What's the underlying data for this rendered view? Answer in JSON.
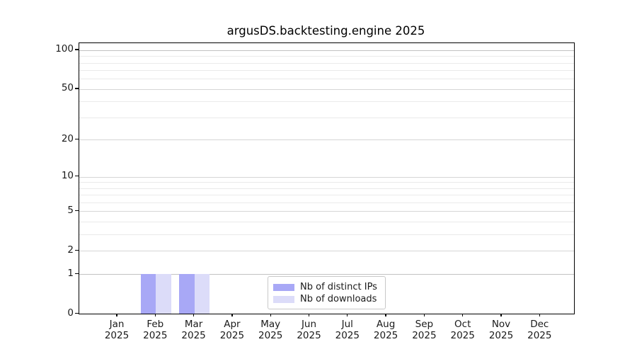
{
  "chart_data": {
    "type": "bar",
    "title": "argusDS.backtesting.engine 2025",
    "categories": [
      "Jan",
      "Feb",
      "Mar",
      "Apr",
      "May",
      "Jun",
      "Jul",
      "Aug",
      "Sep",
      "Oct",
      "Nov",
      "Dec"
    ],
    "year_label": "2025",
    "series": [
      {
        "name": "Nb of distinct IPs",
        "color": "#a8a8f6",
        "values": [
          0,
          1,
          1,
          0,
          0,
          0,
          0,
          0,
          0,
          0,
          0,
          0
        ]
      },
      {
        "name": "Nb of downloads",
        "color": "#dcdcf9",
        "values": [
          0,
          1,
          1,
          0,
          0,
          0,
          0,
          0,
          0,
          0,
          0,
          0
        ]
      }
    ],
    "y_axis": {
      "scale": "log1p",
      "ticks": [
        0,
        1,
        2,
        5,
        10,
        20,
        50,
        100
      ],
      "minor_ticks": [
        3,
        4,
        6,
        7,
        8,
        9,
        30,
        40,
        60,
        70,
        80,
        90
      ],
      "max": 113
    },
    "x_axis": {
      "label_line2": "2025"
    },
    "grid": true,
    "legend": {
      "position": "lower center"
    },
    "colors": {
      "major_grid": "#d6d6d6",
      "minor_grid": "#eaeaea",
      "emphasis_grid": "#c2c2c2",
      "axis": "#000000",
      "background": "#ffffff"
    }
  }
}
